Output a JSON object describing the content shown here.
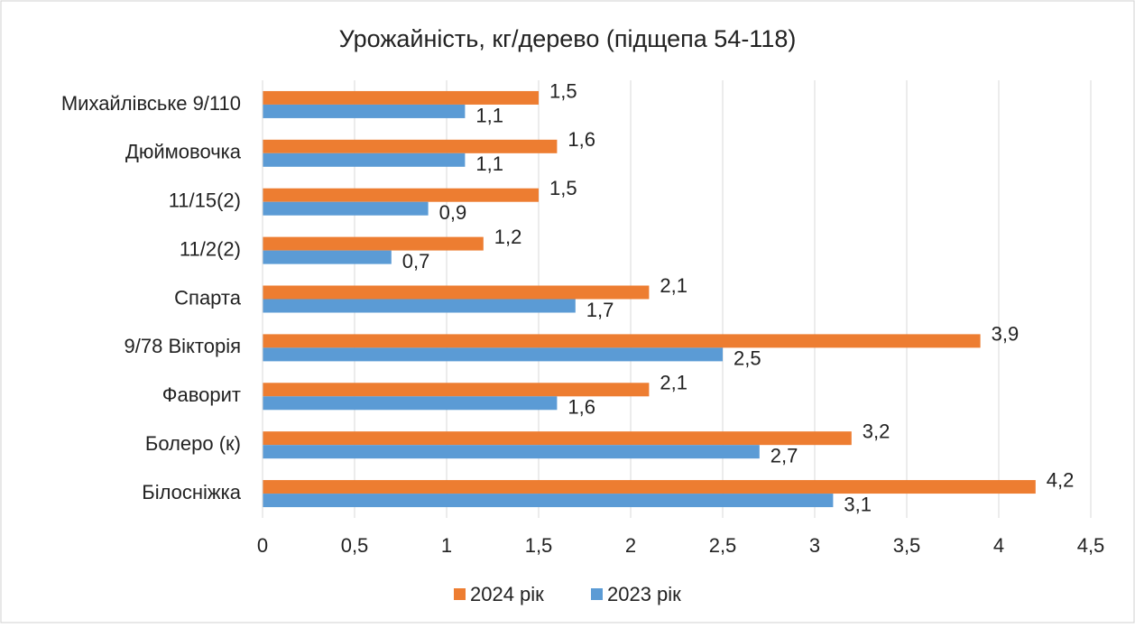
{
  "chart_data": {
    "type": "hbar",
    "title": "Урожайність, кг/дерево (підщепа 54-118)",
    "categories": [
      "Михайлівське 9/110",
      "Дюймовочка",
      "11/15(2)",
      "11/2(2)",
      "Спарта",
      "9/78 Вікторія",
      "Фаворит",
      "Болеро (к)",
      "Білосніжка"
    ],
    "series": [
      {
        "name": "2024 рік",
        "color": "#ed7d31",
        "values": [
          1.5,
          1.6,
          1.5,
          1.2,
          2.1,
          3.9,
          2.1,
          3.2,
          4.2
        ],
        "value_labels": [
          "1,5",
          "1,6",
          "1,5",
          "1,2",
          "2,1",
          "3,9",
          "2,1",
          "3,2",
          "4,2"
        ]
      },
      {
        "name": "2023 рік",
        "color": "#5b9bd5",
        "values": [
          1.1,
          1.1,
          0.9,
          0.7,
          1.7,
          2.5,
          1.6,
          2.7,
          3.1
        ],
        "value_labels": [
          "1,1",
          "1,1",
          "0,9",
          "0,7",
          "1,7",
          "2,5",
          "1,6",
          "2,7",
          "3,1"
        ]
      }
    ],
    "xlim": [
      0,
      4.5
    ],
    "xticks": [
      0,
      {
        "value": 0.5,
        "label": "0,5"
      },
      1,
      {
        "value": 1.5,
        "label": "1,5"
      },
      2,
      {
        "value": 2.5,
        "label": "2,5"
      },
      3,
      {
        "value": 3.5,
        "label": "3,5"
      },
      4,
      {
        "value": 4.5,
        "label": "4,5"
      }
    ],
    "grid": true,
    "legend": "bottom"
  }
}
